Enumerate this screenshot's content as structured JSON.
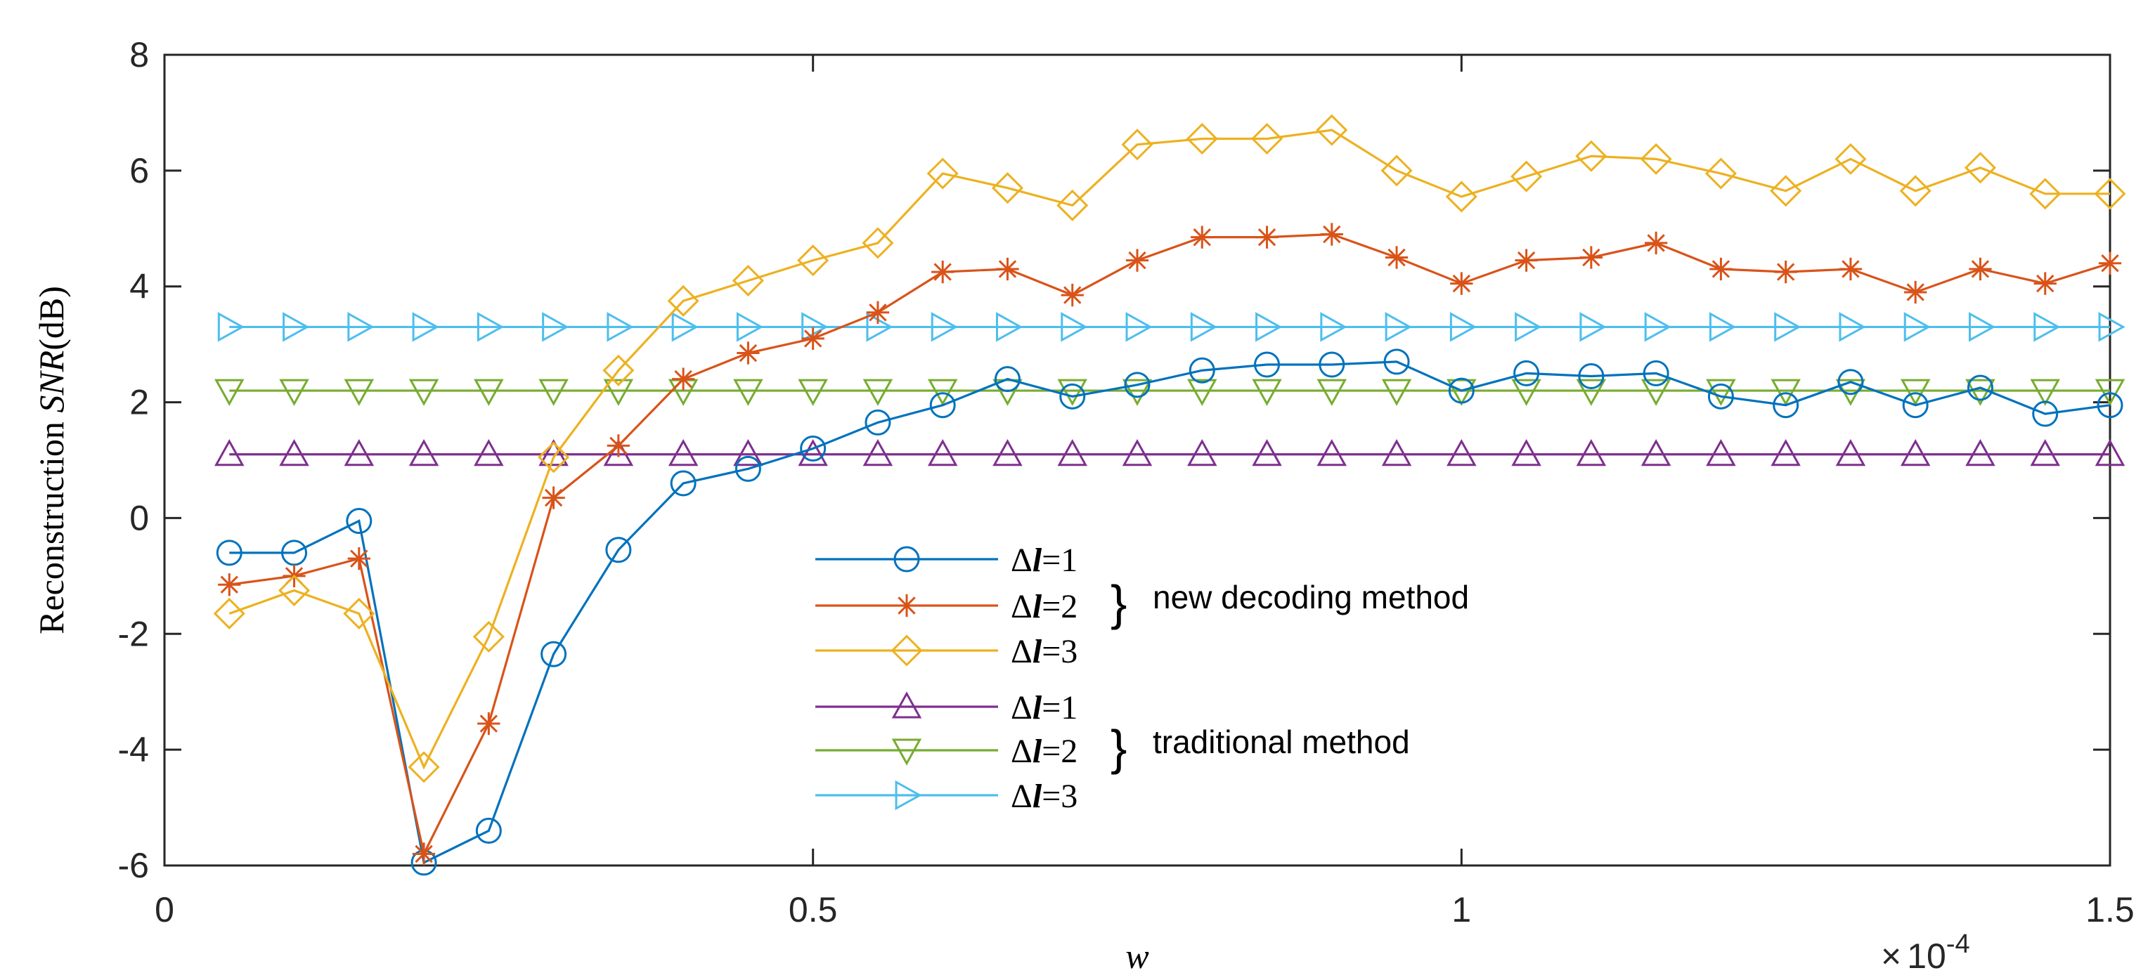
{
  "chart_data": {
    "type": "line",
    "title": "",
    "xlabel": "w",
    "ylabel_prefix": "Reconstruction ",
    "ylabel_italic": "SNR",
    "ylabel_suffix": "(dB)",
    "x_multiplier": "10",
    "x_multiplier_exp": "-4",
    "xlim": [
      0,
      1.5
    ],
    "ylim": [
      -6,
      8
    ],
    "xticks": [
      0,
      0.5,
      1,
      1.5
    ],
    "xtick_labels": [
      "0",
      "0.5",
      "1",
      "1.5"
    ],
    "yticks": [
      -6,
      -4,
      -2,
      0,
      2,
      4,
      6,
      8
    ],
    "ytick_labels": [
      "-6",
      "-4",
      "-2",
      "0",
      "2",
      "4",
      "6",
      "8"
    ],
    "grid": false,
    "legend_position": "center",
    "group_labels": [
      "new decoding method",
      "traditional method"
    ],
    "x": [
      0.05,
      0.1,
      0.15,
      0.2,
      0.25,
      0.3,
      0.35,
      0.4,
      0.45,
      0.5,
      0.55,
      0.6,
      0.65,
      0.7,
      0.75,
      0.8,
      0.85,
      0.9,
      0.95,
      1.0,
      1.05,
      1.1,
      1.15,
      1.2,
      1.25,
      1.3,
      1.35,
      1.4,
      1.45,
      1.5
    ],
    "series": [
      {
        "name": "Δl=1",
        "delta": "Δ",
        "l": "l",
        "eq": "=1",
        "group": "new decoding method",
        "color": "#0072BD",
        "marker": "circle",
        "values": [
          -0.6,
          -0.6,
          -0.05,
          -5.95,
          -5.4,
          -2.35,
          -0.55,
          0.6,
          0.85,
          1.2,
          1.65,
          1.95,
          2.4,
          2.1,
          2.3,
          2.55,
          2.65,
          2.65,
          2.7,
          2.2,
          2.5,
          2.45,
          2.5,
          2.1,
          1.95,
          2.35,
          1.95,
          2.25,
          1.8,
          1.95
        ]
      },
      {
        "name": "Δl=2",
        "delta": "Δ",
        "l": "l",
        "eq": "=2",
        "group": "new decoding method",
        "color": "#D95319",
        "marker": "asterisk",
        "values": [
          -1.15,
          -1.0,
          -0.7,
          -5.8,
          -3.55,
          0.35,
          1.25,
          2.4,
          2.85,
          3.1,
          3.55,
          4.25,
          4.3,
          3.85,
          4.45,
          4.85,
          4.85,
          4.9,
          4.5,
          4.05,
          4.45,
          4.5,
          4.75,
          4.3,
          4.25,
          4.3,
          3.9,
          4.3,
          4.05,
          4.4
        ]
      },
      {
        "name": "Δl=3",
        "delta": "Δ",
        "l": "l",
        "eq": "=3",
        "group": "new decoding method",
        "color": "#EDB120",
        "marker": "diamond",
        "values": [
          -1.65,
          -1.25,
          -1.65,
          -4.3,
          -2.05,
          1.05,
          2.55,
          3.75,
          4.1,
          4.45,
          4.75,
          5.95,
          5.7,
          5.4,
          6.45,
          6.55,
          6.55,
          6.7,
          6.0,
          5.55,
          5.9,
          6.25,
          6.2,
          5.95,
          5.65,
          6.2,
          5.65,
          6.05,
          5.6,
          5.6
        ]
      },
      {
        "name": "Δl=1",
        "delta": "Δ",
        "l": "l",
        "eq": "=1",
        "group": "traditional method",
        "color": "#7E2F8E",
        "marker": "triangle-up",
        "values": [
          1.1,
          1.1,
          1.1,
          1.1,
          1.1,
          1.1,
          1.1,
          1.1,
          1.1,
          1.1,
          1.1,
          1.1,
          1.1,
          1.1,
          1.1,
          1.1,
          1.1,
          1.1,
          1.1,
          1.1,
          1.1,
          1.1,
          1.1,
          1.1,
          1.1,
          1.1,
          1.1,
          1.1,
          1.1,
          1.1
        ]
      },
      {
        "name": "Δl=2",
        "delta": "Δ",
        "l": "l",
        "eq": "=2",
        "group": "traditional method",
        "color": "#77AC30",
        "marker": "triangle-down",
        "values": [
          2.2,
          2.2,
          2.2,
          2.2,
          2.2,
          2.2,
          2.2,
          2.2,
          2.2,
          2.2,
          2.2,
          2.2,
          2.2,
          2.2,
          2.2,
          2.2,
          2.2,
          2.2,
          2.2,
          2.2,
          2.2,
          2.2,
          2.2,
          2.2,
          2.2,
          2.2,
          2.2,
          2.2,
          2.2,
          2.2
        ]
      },
      {
        "name": "Δl=3",
        "delta": "Δ",
        "l": "l",
        "eq": "=3",
        "group": "traditional method",
        "color": "#4DBEEE",
        "marker": "triangle-right",
        "values": [
          3.3,
          3.3,
          3.3,
          3.3,
          3.3,
          3.3,
          3.3,
          3.3,
          3.3,
          3.3,
          3.3,
          3.3,
          3.3,
          3.3,
          3.3,
          3.3,
          3.3,
          3.3,
          3.3,
          3.3,
          3.3,
          3.3,
          3.3,
          3.3,
          3.3,
          3.3,
          3.3,
          3.3,
          3.3,
          3.3
        ]
      }
    ]
  }
}
